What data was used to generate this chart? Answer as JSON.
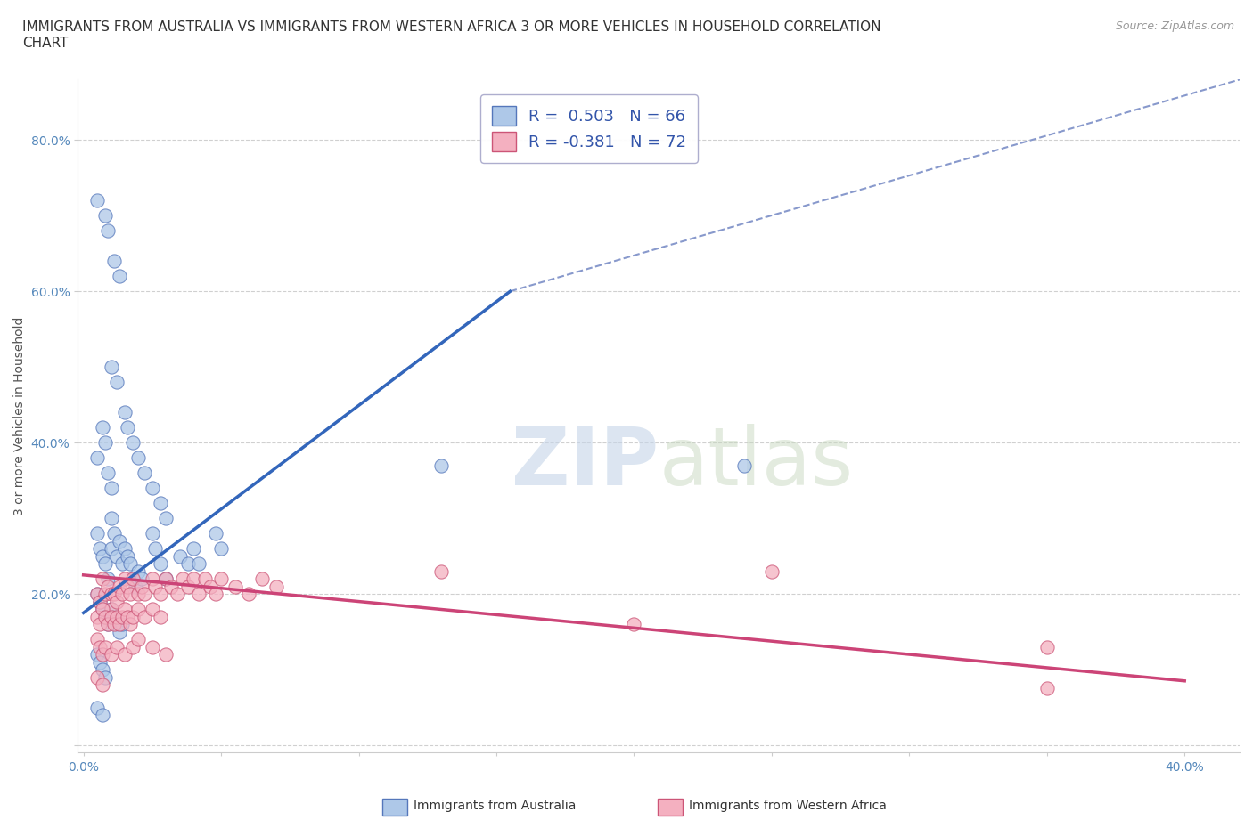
{
  "title": "IMMIGRANTS FROM AUSTRALIA VS IMMIGRANTS FROM WESTERN AFRICA 3 OR MORE VEHICLES IN HOUSEHOLD CORRELATION\nCHART",
  "source": "Source: ZipAtlas.com",
  "ylabel": "3 or more Vehicles in Household",
  "xlim": [
    -0.002,
    0.42
  ],
  "ylim": [
    -0.01,
    0.88
  ],
  "xticks": [
    0.0,
    0.05,
    0.1,
    0.15,
    0.2,
    0.25,
    0.3,
    0.35,
    0.4
  ],
  "yticks": [
    0.0,
    0.2,
    0.4,
    0.6,
    0.8
  ],
  "australia_color": "#aec8e8",
  "australia_edge": "#5577bb",
  "australia_line_color": "#3366bb",
  "western_africa_color": "#f4b0c0",
  "western_africa_edge": "#cc5577",
  "western_africa_line_color": "#cc4477",
  "R_australia": 0.503,
  "N_australia": 66,
  "R_western_africa": -0.381,
  "N_western_africa": 72,
  "aus_line_x": [
    0.0,
    0.155
  ],
  "aus_line_y": [
    0.175,
    0.6
  ],
  "waf_line_x": [
    0.0,
    0.4
  ],
  "waf_line_y": [
    0.225,
    0.085
  ],
  "dash_line_x": [
    0.155,
    0.42
  ],
  "dash_line_y": [
    0.6,
    0.88
  ],
  "australia_scatter": [
    [
      0.005,
      0.72
    ],
    [
      0.008,
      0.7
    ],
    [
      0.009,
      0.68
    ],
    [
      0.011,
      0.64
    ],
    [
      0.013,
      0.62
    ],
    [
      0.005,
      0.38
    ],
    [
      0.007,
      0.42
    ],
    [
      0.008,
      0.4
    ],
    [
      0.009,
      0.36
    ],
    [
      0.01,
      0.34
    ],
    [
      0.01,
      0.5
    ],
    [
      0.012,
      0.48
    ],
    [
      0.015,
      0.44
    ],
    [
      0.016,
      0.42
    ],
    [
      0.018,
      0.4
    ],
    [
      0.02,
      0.38
    ],
    [
      0.022,
      0.36
    ],
    [
      0.025,
      0.34
    ],
    [
      0.028,
      0.32
    ],
    [
      0.03,
      0.3
    ],
    [
      0.005,
      0.28
    ],
    [
      0.006,
      0.26
    ],
    [
      0.007,
      0.25
    ],
    [
      0.008,
      0.24
    ],
    [
      0.009,
      0.22
    ],
    [
      0.01,
      0.3
    ],
    [
      0.01,
      0.26
    ],
    [
      0.011,
      0.28
    ],
    [
      0.012,
      0.25
    ],
    [
      0.013,
      0.27
    ],
    [
      0.014,
      0.24
    ],
    [
      0.015,
      0.26
    ],
    [
      0.016,
      0.25
    ],
    [
      0.017,
      0.24
    ],
    [
      0.018,
      0.22
    ],
    [
      0.019,
      0.21
    ],
    [
      0.02,
      0.23
    ],
    [
      0.021,
      0.22
    ],
    [
      0.025,
      0.28
    ],
    [
      0.026,
      0.26
    ],
    [
      0.028,
      0.24
    ],
    [
      0.03,
      0.22
    ],
    [
      0.035,
      0.25
    ],
    [
      0.038,
      0.24
    ],
    [
      0.04,
      0.26
    ],
    [
      0.042,
      0.24
    ],
    [
      0.048,
      0.28
    ],
    [
      0.05,
      0.26
    ],
    [
      0.005,
      0.2
    ],
    [
      0.006,
      0.19
    ],
    [
      0.007,
      0.18
    ],
    [
      0.008,
      0.17
    ],
    [
      0.009,
      0.16
    ],
    [
      0.01,
      0.18
    ],
    [
      0.011,
      0.17
    ],
    [
      0.012,
      0.16
    ],
    [
      0.013,
      0.15
    ],
    [
      0.014,
      0.16
    ],
    [
      0.005,
      0.12
    ],
    [
      0.006,
      0.11
    ],
    [
      0.007,
      0.1
    ],
    [
      0.008,
      0.09
    ],
    [
      0.13,
      0.37
    ],
    [
      0.24,
      0.37
    ],
    [
      0.005,
      0.05
    ],
    [
      0.007,
      0.04
    ]
  ],
  "western_africa_scatter": [
    [
      0.005,
      0.2
    ],
    [
      0.006,
      0.19
    ],
    [
      0.007,
      0.22
    ],
    [
      0.008,
      0.2
    ],
    [
      0.009,
      0.21
    ],
    [
      0.01,
      0.2
    ],
    [
      0.01,
      0.18
    ],
    [
      0.011,
      0.2
    ],
    [
      0.012,
      0.19
    ],
    [
      0.013,
      0.21
    ],
    [
      0.014,
      0.2
    ],
    [
      0.015,
      0.22
    ],
    [
      0.016,
      0.21
    ],
    [
      0.017,
      0.2
    ],
    [
      0.018,
      0.22
    ],
    [
      0.02,
      0.2
    ],
    [
      0.021,
      0.21
    ],
    [
      0.022,
      0.2
    ],
    [
      0.025,
      0.22
    ],
    [
      0.026,
      0.21
    ],
    [
      0.028,
      0.2
    ],
    [
      0.03,
      0.22
    ],
    [
      0.032,
      0.21
    ],
    [
      0.034,
      0.2
    ],
    [
      0.036,
      0.22
    ],
    [
      0.038,
      0.21
    ],
    [
      0.04,
      0.22
    ],
    [
      0.042,
      0.2
    ],
    [
      0.044,
      0.22
    ],
    [
      0.046,
      0.21
    ],
    [
      0.048,
      0.2
    ],
    [
      0.05,
      0.22
    ],
    [
      0.055,
      0.21
    ],
    [
      0.06,
      0.2
    ],
    [
      0.065,
      0.22
    ],
    [
      0.07,
      0.21
    ],
    [
      0.005,
      0.17
    ],
    [
      0.006,
      0.16
    ],
    [
      0.007,
      0.18
    ],
    [
      0.008,
      0.17
    ],
    [
      0.009,
      0.16
    ],
    [
      0.01,
      0.17
    ],
    [
      0.011,
      0.16
    ],
    [
      0.012,
      0.17
    ],
    [
      0.013,
      0.16
    ],
    [
      0.014,
      0.17
    ],
    [
      0.015,
      0.18
    ],
    [
      0.016,
      0.17
    ],
    [
      0.017,
      0.16
    ],
    [
      0.018,
      0.17
    ],
    [
      0.02,
      0.18
    ],
    [
      0.022,
      0.17
    ],
    [
      0.025,
      0.18
    ],
    [
      0.028,
      0.17
    ],
    [
      0.005,
      0.14
    ],
    [
      0.006,
      0.13
    ],
    [
      0.007,
      0.12
    ],
    [
      0.008,
      0.13
    ],
    [
      0.01,
      0.12
    ],
    [
      0.012,
      0.13
    ],
    [
      0.015,
      0.12
    ],
    [
      0.018,
      0.13
    ],
    [
      0.02,
      0.14
    ],
    [
      0.025,
      0.13
    ],
    [
      0.03,
      0.12
    ],
    [
      0.13,
      0.23
    ],
    [
      0.2,
      0.16
    ],
    [
      0.25,
      0.23
    ],
    [
      0.35,
      0.13
    ],
    [
      0.005,
      0.09
    ],
    [
      0.007,
      0.08
    ],
    [
      0.35,
      0.075
    ]
  ],
  "watermark_zip": "ZIP",
  "watermark_atlas": "atlas",
  "background_color": "#ffffff",
  "grid_color": "#d0d0d0",
  "title_fontsize": 11,
  "axis_fontsize": 10,
  "tick_fontsize": 10,
  "legend_fontsize": 13
}
